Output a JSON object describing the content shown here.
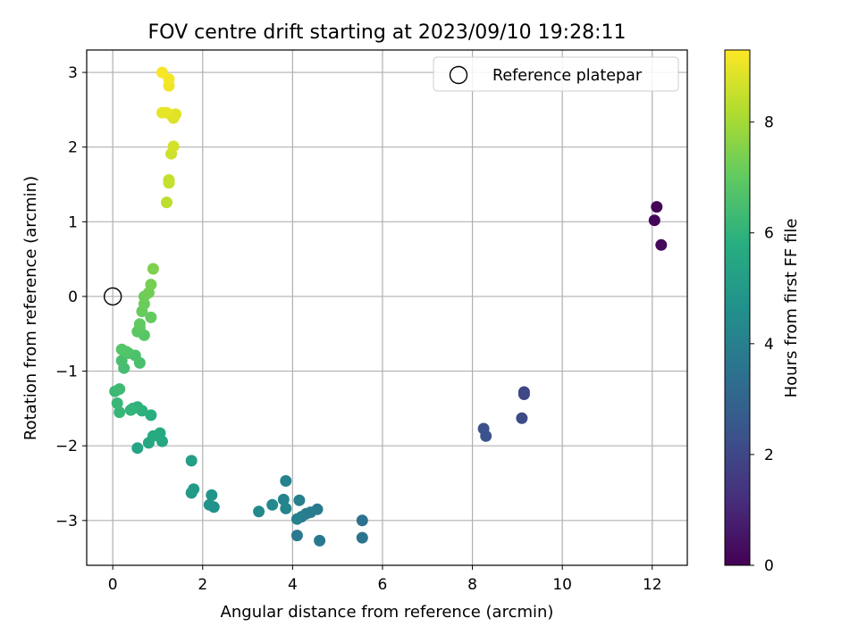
{
  "chart_data": {
    "type": "scatter",
    "title": "FOV centre drift starting at 2023/09/10 19:28:11",
    "xlabel": "Angular distance from reference (arcmin)",
    "ylabel": "Rotation from reference (arcmin)",
    "xlim": [
      -0.58,
      12.78
    ],
    "ylim": [
      -3.6,
      3.3
    ],
    "xticks": [
      0,
      2,
      4,
      6,
      8,
      10,
      12
    ],
    "yticks": [
      -3,
      -2,
      -1,
      0,
      1,
      2,
      3
    ],
    "grid": true,
    "legend": {
      "position": "top-right",
      "entries": [
        "Reference platepar"
      ]
    },
    "reference_point": {
      "x": 0,
      "y": 0
    },
    "colorbar": {
      "label": "Hours from first FF file",
      "range": [
        0,
        9.3
      ],
      "ticks": [
        0,
        2,
        4,
        6,
        8
      ],
      "colormap": "viridis"
    },
    "points": [
      {
        "x": 12.1,
        "y": 1.2,
        "c": 0.1
      },
      {
        "x": 12.05,
        "y": 1.02,
        "c": 0.15
      },
      {
        "x": 12.2,
        "y": 0.69,
        "c": 0.2
      },
      {
        "x": 9.15,
        "y": -1.28,
        "c": 1.9
      },
      {
        "x": 9.15,
        "y": -1.31,
        "c": 2.0
      },
      {
        "x": 9.1,
        "y": -1.63,
        "c": 2.1
      },
      {
        "x": 8.25,
        "y": -1.77,
        "c": 2.3
      },
      {
        "x": 8.3,
        "y": -1.87,
        "c": 2.4
      },
      {
        "x": 5.55,
        "y": -3.0,
        "c": 3.5
      },
      {
        "x": 5.55,
        "y": -3.23,
        "c": 3.55
      },
      {
        "x": 4.6,
        "y": -3.27,
        "c": 3.7
      },
      {
        "x": 4.1,
        "y": -3.2,
        "c": 3.75
      },
      {
        "x": 4.55,
        "y": -2.85,
        "c": 3.8
      },
      {
        "x": 4.4,
        "y": -2.89,
        "c": 3.85
      },
      {
        "x": 4.3,
        "y": -2.91,
        "c": 3.9
      },
      {
        "x": 4.2,
        "y": -2.95,
        "c": 3.95
      },
      {
        "x": 4.1,
        "y": -2.98,
        "c": 4.0
      },
      {
        "x": 4.15,
        "y": -2.73,
        "c": 4.05
      },
      {
        "x": 3.85,
        "y": -2.47,
        "c": 4.1
      },
      {
        "x": 3.8,
        "y": -2.72,
        "c": 4.15
      },
      {
        "x": 3.85,
        "y": -2.84,
        "c": 4.2
      },
      {
        "x": 3.55,
        "y": -2.79,
        "c": 4.3
      },
      {
        "x": 3.25,
        "y": -2.88,
        "c": 4.4
      },
      {
        "x": 2.25,
        "y": -2.82,
        "c": 4.7
      },
      {
        "x": 2.15,
        "y": -2.79,
        "c": 4.75
      },
      {
        "x": 2.2,
        "y": -2.66,
        "c": 4.8
      },
      {
        "x": 1.8,
        "y": -2.58,
        "c": 5.0
      },
      {
        "x": 1.75,
        "y": -2.63,
        "c": 5.05
      },
      {
        "x": 1.75,
        "y": -2.2,
        "c": 5.2
      },
      {
        "x": 0.55,
        "y": -2.03,
        "c": 5.4
      },
      {
        "x": 0.8,
        "y": -1.96,
        "c": 5.5
      },
      {
        "x": 1.1,
        "y": -1.94,
        "c": 5.55
      },
      {
        "x": 1.05,
        "y": -1.83,
        "c": 5.6
      },
      {
        "x": 0.9,
        "y": -1.87,
        "c": 5.65
      },
      {
        "x": 0.85,
        "y": -1.59,
        "c": 5.8
      },
      {
        "x": 0.65,
        "y": -1.53,
        "c": 5.9
      },
      {
        "x": 0.55,
        "y": -1.48,
        "c": 5.95
      },
      {
        "x": 0.45,
        "y": -1.5,
        "c": 6.0
      },
      {
        "x": 0.4,
        "y": -1.52,
        "c": 6.05
      },
      {
        "x": 0.15,
        "y": -1.55,
        "c": 6.15
      },
      {
        "x": 0.1,
        "y": -1.43,
        "c": 6.2
      },
      {
        "x": 0.05,
        "y": -1.27,
        "c": 6.25
      },
      {
        "x": 0.15,
        "y": -1.24,
        "c": 6.3
      },
      {
        "x": 0.25,
        "y": -0.96,
        "c": 6.45
      },
      {
        "x": 0.2,
        "y": -0.86,
        "c": 6.5
      },
      {
        "x": 0.6,
        "y": -0.89,
        "c": 6.55
      },
      {
        "x": 0.5,
        "y": -0.79,
        "c": 6.6
      },
      {
        "x": 0.35,
        "y": -0.76,
        "c": 6.65
      },
      {
        "x": 0.3,
        "y": -0.74,
        "c": 6.7
      },
      {
        "x": 0.2,
        "y": -0.71,
        "c": 6.75
      },
      {
        "x": 0.7,
        "y": -0.52,
        "c": 6.85
      },
      {
        "x": 0.55,
        "y": -0.47,
        "c": 6.9
      },
      {
        "x": 0.6,
        "y": -0.42,
        "c": 6.95
      },
      {
        "x": 0.6,
        "y": -0.37,
        "c": 7.0
      },
      {
        "x": 0.85,
        "y": -0.28,
        "c": 7.05
      },
      {
        "x": 0.65,
        "y": -0.2,
        "c": 7.1
      },
      {
        "x": 0.7,
        "y": -0.1,
        "c": 7.15
      },
      {
        "x": 0.7,
        "y": 0.0,
        "c": 7.2
      },
      {
        "x": 0.8,
        "y": 0.05,
        "c": 7.25
      },
      {
        "x": 0.85,
        "y": 0.16,
        "c": 7.35
      },
      {
        "x": 0.9,
        "y": 0.37,
        "c": 7.45
      },
      {
        "x": 1.2,
        "y": 1.26,
        "c": 8.35
      },
      {
        "x": 1.25,
        "y": 1.52,
        "c": 8.45
      },
      {
        "x": 1.25,
        "y": 1.56,
        "c": 8.5
      },
      {
        "x": 1.3,
        "y": 1.91,
        "c": 8.6
      },
      {
        "x": 1.35,
        "y": 2.01,
        "c": 8.7
      },
      {
        "x": 1.35,
        "y": 2.39,
        "c": 8.8
      },
      {
        "x": 1.3,
        "y": 2.43,
        "c": 8.85
      },
      {
        "x": 1.4,
        "y": 2.44,
        "c": 8.9
      },
      {
        "x": 1.1,
        "y": 2.46,
        "c": 8.95
      },
      {
        "x": 1.2,
        "y": 2.46,
        "c": 9.0
      },
      {
        "x": 1.25,
        "y": 2.82,
        "c": 9.1
      },
      {
        "x": 1.25,
        "y": 2.91,
        "c": 9.15
      },
      {
        "x": 1.1,
        "y": 3.0,
        "c": 9.2
      }
    ]
  }
}
